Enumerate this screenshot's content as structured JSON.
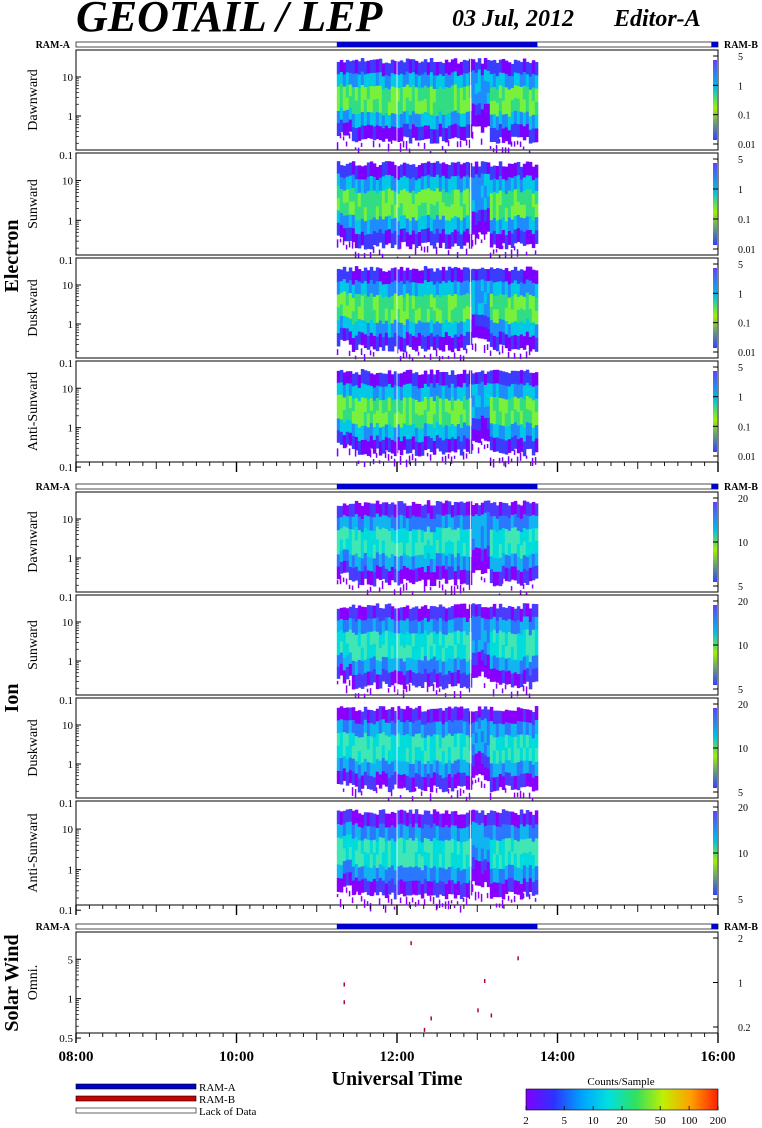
{
  "header": {
    "title": "GEOTAIL / LEP",
    "date": "03 Jul, 2012",
    "editor": "Editor-A"
  },
  "groups": [
    {
      "name": "Electron",
      "ram_left": "RAM-A",
      "ram_right": "RAM-B",
      "panels": [
        {
          "name": "Dawnward",
          "left_ticks": [
            "10",
            "1",
            "0.1"
          ],
          "right_ticks": [
            "5",
            "1",
            "0.1",
            "0.01"
          ]
        },
        {
          "name": "Sunward",
          "left_ticks": [
            "10",
            "1",
            "0.1"
          ],
          "right_ticks": [
            "5",
            "1",
            "0.1",
            "0.01"
          ]
        },
        {
          "name": "Duskward",
          "left_ticks": [
            "10",
            "1",
            "0.1"
          ],
          "right_ticks": [
            "5",
            "1",
            "0.1",
            "0.01"
          ]
        },
        {
          "name": "Anti-Sunward",
          "left_ticks": [
            "10",
            "1",
            "0.1"
          ],
          "right_ticks": [
            "5",
            "1",
            "0.1",
            "0.01"
          ]
        }
      ]
    },
    {
      "name": "Ion",
      "ram_left": "RAM-A",
      "ram_right": "RAM-B",
      "panels": [
        {
          "name": "Dawnward",
          "left_ticks": [
            "10",
            "1",
            "0.1"
          ],
          "right_ticks": [
            "20",
            "10",
            "5"
          ]
        },
        {
          "name": "Sunward",
          "left_ticks": [
            "10",
            "1",
            "0.1"
          ],
          "right_ticks": [
            "20",
            "10",
            "5"
          ]
        },
        {
          "name": "Duskward",
          "left_ticks": [
            "10",
            "1",
            "0.1"
          ],
          "right_ticks": [
            "20",
            "10",
            "5"
          ]
        },
        {
          "name": "Anti-Sunward",
          "left_ticks": [
            "10",
            "1",
            "0.1"
          ],
          "right_ticks": [
            "20",
            "10",
            "5"
          ]
        }
      ]
    },
    {
      "name": "Solar Wind",
      "ram_left": "RAM-A",
      "ram_right": "RAM-B",
      "panels": [
        {
          "name": "Omni.",
          "left_ticks": [
            "5",
            "1",
            "0.5"
          ],
          "right_ticks": [
            "2",
            "1",
            "0.2"
          ]
        }
      ]
    }
  ],
  "legend": {
    "items": [
      {
        "label": "RAM-A",
        "color": "#0000cc"
      },
      {
        "label": "RAM-B",
        "color": "#cc0000"
      },
      {
        "label": "Lack of Data",
        "color": "#ffffff"
      }
    ]
  },
  "colorbar": {
    "title": "Counts/Sample",
    "ticks": [
      "2",
      "5",
      "10",
      "20",
      "50",
      "100",
      "200"
    ],
    "stops": [
      "#8000ff",
      "#3030ff",
      "#00a0ff",
      "#00e0e0",
      "#30e060",
      "#c0f000",
      "#ffa000",
      "#ff2000"
    ]
  },
  "chart_data": {
    "type": "heatmap",
    "title": "GEOTAIL / LEP",
    "xlabel": "Universal Time",
    "x_ticks": [
      "08:00",
      "10:00",
      "12:00",
      "14:00",
      "16:00"
    ],
    "x_range": [
      "08:00",
      "16:00"
    ],
    "data_coverage": {
      "start": "11:15",
      "end": "13:45"
    },
    "ram_a_coverage": [
      [
        "11:15",
        "13:45"
      ],
      [
        "15:55",
        "16:00"
      ]
    ],
    "color_scale": {
      "label": "Counts/Sample",
      "min": 2,
      "max": 200,
      "log": true
    },
    "solar_wind_points": [
      {
        "t": "12:10",
        "y": 6.5
      },
      {
        "t": "13:30",
        "y": 3.8
      },
      {
        "t": "11:20",
        "y": 1.5
      },
      {
        "t": "13:05",
        "y": 1.7
      },
      {
        "t": "11:20",
        "y": 0.8
      },
      {
        "t": "13:00",
        "y": 0.6
      },
      {
        "t": "13:10",
        "y": 0.5
      },
      {
        "t": "12:25",
        "y": 0.45
      },
      {
        "t": "12:20",
        "y": 0.3
      }
    ]
  }
}
